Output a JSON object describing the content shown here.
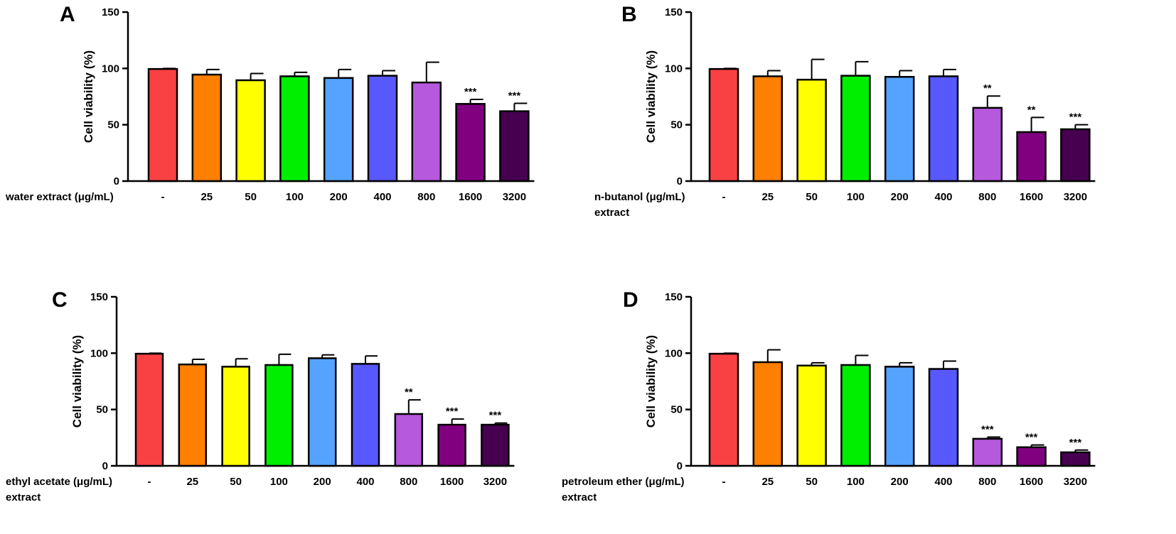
{
  "chart_data": [
    {
      "type": "bar",
      "panel": "A",
      "categories": [
        "-",
        "25",
        "50",
        "100",
        "200",
        "400",
        "800",
        "1600",
        "3200"
      ],
      "values": [
        99.5,
        94.5,
        89.5,
        93,
        91.5,
        93.5,
        87.5,
        68.5,
        62
      ],
      "errors": [
        0.5,
        4.5,
        6,
        3.5,
        7.5,
        4.5,
        18,
        4,
        7
      ],
      "significance": [
        "",
        "",
        "",
        "",
        "",
        "",
        "",
        "***",
        "***"
      ],
      "xlabel": [
        "water extract (μg/mL)"
      ],
      "ylabel": "Cell viability (%)",
      "yticks": [
        0,
        50,
        100,
        150
      ],
      "ylim": [
        0,
        150
      ]
    },
    {
      "type": "bar",
      "panel": "B",
      "categories": [
        "-",
        "25",
        "50",
        "100",
        "200",
        "400",
        "800",
        "1600",
        "3200"
      ],
      "values": [
        99.5,
        93,
        90,
        93.5,
        92.5,
        93,
        65,
        43.5,
        46
      ],
      "errors": [
        0.5,
        5,
        18,
        12.5,
        5.5,
        6,
        10.5,
        13,
        4
      ],
      "significance": [
        "",
        "",
        "",
        "",
        "",
        "",
        "**",
        "**",
        "***"
      ],
      "xlabel": [
        "n-butanol (μg/mL)",
        "extract"
      ],
      "ylabel": "Cell viability (%)",
      "yticks": [
        0,
        50,
        100,
        150
      ],
      "ylim": [
        0,
        150
      ]
    },
    {
      "type": "bar",
      "panel": "C",
      "categories": [
        "-",
        "25",
        "50",
        "100",
        "200",
        "400",
        "800",
        "1600",
        "3200"
      ],
      "values": [
        99.5,
        90,
        88,
        89.5,
        95.5,
        90.5,
        46,
        36.5,
        36.5
      ],
      "errors": [
        0.5,
        4.5,
        7,
        9.5,
        3,
        7,
        12.5,
        5,
        1.5
      ],
      "significance": [
        "",
        "",
        "",
        "",
        "",
        "",
        "**",
        "***",
        "***"
      ],
      "xlabel": [
        "ethyl acetate (μg/mL)",
        "extract"
      ],
      "ylabel": "Cell viability (%)",
      "yticks": [
        0,
        50,
        100,
        150
      ],
      "ylim": [
        0,
        150
      ]
    },
    {
      "type": "bar",
      "panel": "D",
      "categories": [
        "-",
        "25",
        "50",
        "100",
        "200",
        "400",
        "800",
        "1600",
        "3200"
      ],
      "values": [
        99.5,
        92,
        89,
        89.5,
        88,
        86,
        24,
        16.5,
        12
      ],
      "errors": [
        0.5,
        11,
        2.5,
        8.5,
        3.5,
        7,
        1.5,
        2,
        2
      ],
      "significance": [
        "",
        "",
        "",
        "",
        "",
        "",
        "***",
        "***",
        "***"
      ],
      "xlabel": [
        "petroleum ether (μg/mL)",
        "extract"
      ],
      "ylabel": "Cell viability (%)",
      "yticks": [
        0,
        50,
        100,
        150
      ],
      "ylim": [
        0,
        150
      ]
    }
  ],
  "colors": [
    "#f94144",
    "#ff7f00",
    "#ffff00",
    "#00ee00",
    "#55a3ff",
    "#5858ff",
    "#b659dd",
    "#800080",
    "#470050"
  ]
}
